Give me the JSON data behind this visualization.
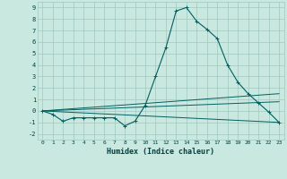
{
  "xlabel": "Humidex (Indice chaleur)",
  "ylabel": "",
  "bg_color": "#c8e8e0",
  "grid_color": "#a0c8c0",
  "line_color": "#006060",
  "xlim": [
    -0.5,
    23.5
  ],
  "ylim": [
    -2.5,
    9.5
  ],
  "xticks": [
    0,
    1,
    2,
    3,
    4,
    5,
    6,
    7,
    8,
    9,
    10,
    11,
    12,
    13,
    14,
    15,
    16,
    17,
    18,
    19,
    20,
    21,
    22,
    23
  ],
  "yticks": [
    -2,
    -1,
    0,
    1,
    2,
    3,
    4,
    5,
    6,
    7,
    8,
    9
  ],
  "series": [
    {
      "x": [
        0,
        1,
        2,
        3,
        4,
        5,
        6,
        7,
        8,
        9,
        10,
        11,
        12,
        13,
        14,
        15,
        16,
        17,
        18,
        19,
        20,
        21,
        22,
        23
      ],
      "y": [
        0.0,
        -0.3,
        -0.9,
        -0.6,
        -0.6,
        -0.6,
        -0.6,
        -0.6,
        -1.3,
        -0.9,
        0.5,
        3.0,
        5.5,
        8.7,
        9.0,
        7.8,
        7.1,
        6.3,
        4.0,
        2.5,
        1.5,
        0.7,
        -0.1,
        -1.0
      ]
    },
    {
      "x": [
        0,
        23
      ],
      "y": [
        0.0,
        -1.0
      ]
    },
    {
      "x": [
        0,
        23
      ],
      "y": [
        0.0,
        1.5
      ]
    },
    {
      "x": [
        0,
        23
      ],
      "y": [
        0.0,
        0.8
      ]
    }
  ]
}
